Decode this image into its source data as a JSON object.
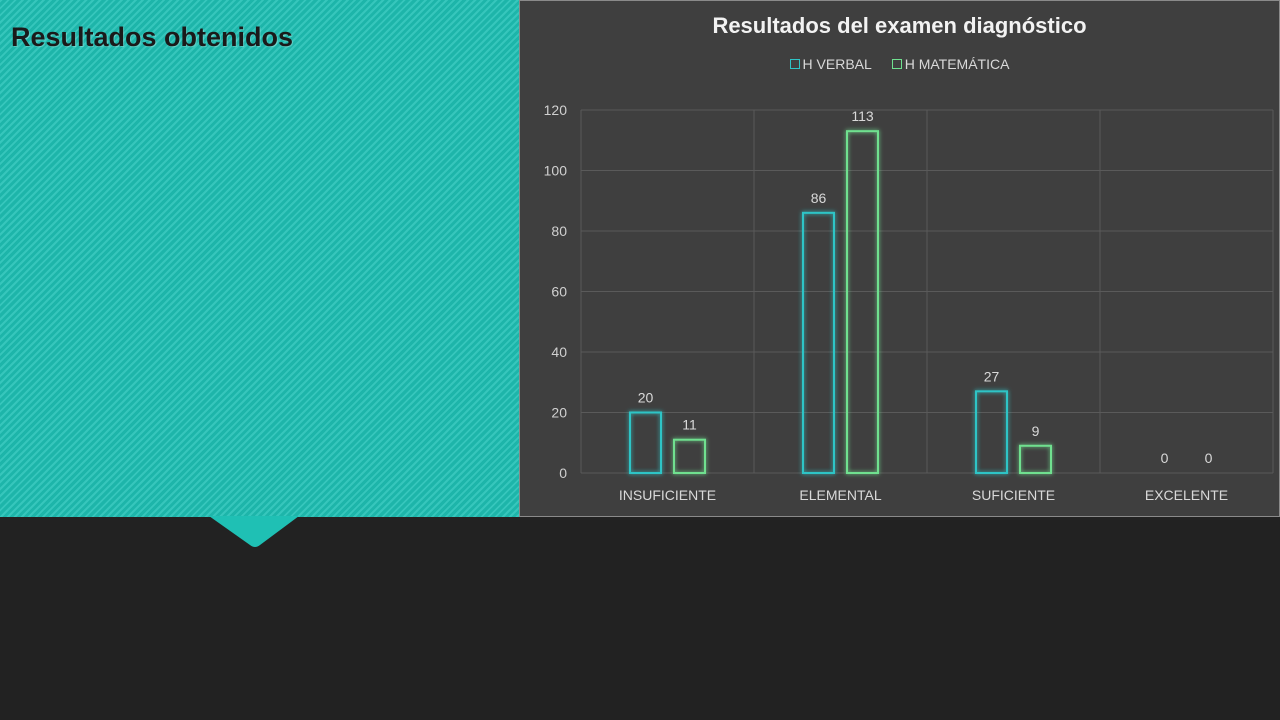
{
  "slide": {
    "title": "Resultados obtenidos"
  },
  "colors": {
    "teal_panel": "#1fc0b4",
    "background": "#222222",
    "chart_bg": "#3f3f3f",
    "series_verbal": "#2ec4c6",
    "series_matematica": "#6fe08f"
  },
  "chart_data": {
    "type": "bar",
    "title": "Resultados del examen diagnóstico",
    "categories": [
      "INSUFICIENTE",
      "ELEMENTAL",
      "SUFICIENTE",
      "EXCELENTE"
    ],
    "series": [
      {
        "name": "H VERBAL",
        "values": [
          20,
          86,
          27,
          0
        ]
      },
      {
        "name": "H MATEMÁTICA",
        "values": [
          11,
          113,
          9,
          0
        ]
      }
    ],
    "xlabel": "",
    "ylabel": "",
    "ylim": [
      0,
      120
    ],
    "yticks": [
      0,
      20,
      40,
      60,
      80,
      100,
      120
    ],
    "grid": true,
    "legend_position": "top"
  }
}
